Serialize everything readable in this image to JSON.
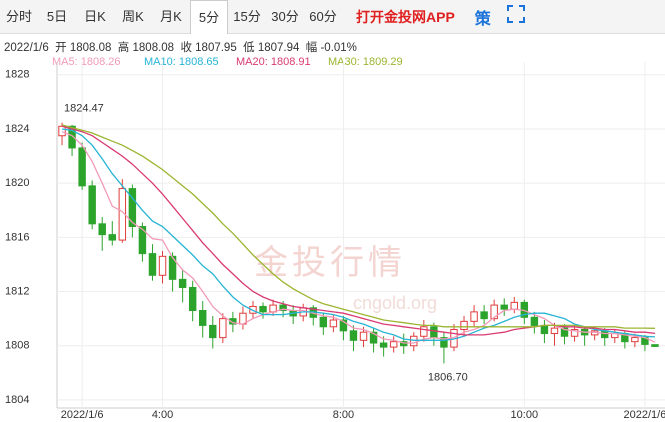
{
  "tabs": {
    "items": [
      "分时",
      "5日",
      "日K",
      "周K",
      "月K",
      "5分",
      "15分",
      "30分",
      "60分"
    ],
    "active": 5,
    "app_link": "打开金投网APP",
    "strategy": "策"
  },
  "info": "2022/1/6  开 1808.08  高 1808.08  收 1807.95  低 1807.94  幅 -0.01%",
  "watermark": {
    "title": "金投行情",
    "site": "cngold.org"
  },
  "chart_data": {
    "type": "candlestick",
    "categories": [
      null,
      null,
      "2022/1/6",
      null,
      null,
      null,
      null,
      null,
      null,
      null,
      "4:00",
      null,
      null,
      null,
      null,
      null,
      null,
      null,
      null,
      null,
      null,
      null,
      null,
      null,
      null,
      null,
      null,
      null,
      "8:00",
      null,
      null,
      null,
      null,
      null,
      null,
      null,
      null,
      null,
      null,
      null,
      null,
      null,
      null,
      null,
      null,
      null,
      "10:00",
      null,
      null,
      null,
      null,
      null,
      null,
      null,
      null,
      null,
      null,
      null,
      "2022/1/6",
      null
    ],
    "open": [
      1823.5,
      1824.2,
      1822.6,
      1819.8,
      1817.0,
      1816.2,
      1815.8,
      1819.6,
      1816.8,
      1814.8,
      1813.2,
      1814.6,
      1812.9,
      1812.3,
      1810.6,
      1809.5,
      1808.6,
      1810.0,
      1809.6,
      1810.4,
      1810.9,
      1810.5,
      1811.0,
      1810.6,
      1810.2,
      1810.8,
      1810.1,
      1809.4,
      1809.9,
      1809.1,
      1808.4,
      1809.0,
      1808.2,
      1807.9,
      1808.3,
      1808.0,
      1808.7,
      1809.4,
      1808.6,
      1807.9,
      1809.2,
      1809.8,
      1810.5,
      1810.0,
      1811.0,
      1810.7,
      1811.2,
      1810.1,
      1809.5,
      1808.9,
      1809.3,
      1808.7,
      1809.2,
      1808.8,
      1809.1,
      1808.6,
      1808.9,
      1808.3,
      1808.6,
      1808.08
    ],
    "high": [
      1824.47,
      1824.3,
      1823.0,
      1820.2,
      1817.5,
      1817.2,
      1820.3,
      1819.9,
      1817.1,
      1815.5,
      1815.0,
      1814.9,
      1813.6,
      1812.8,
      1811.3,
      1810.2,
      1810.4,
      1810.5,
      1810.9,
      1811.3,
      1811.2,
      1811.4,
      1811.3,
      1811.0,
      1811.1,
      1811.0,
      1810.4,
      1810.3,
      1810.2,
      1809.5,
      1809.4,
      1809.3,
      1808.7,
      1808.7,
      1808.9,
      1809.0,
      1809.9,
      1809.7,
      1809.0,
      1809.6,
      1810.2,
      1811.0,
      1811.0,
      1811.4,
      1811.5,
      1811.6,
      1811.4,
      1810.5,
      1809.9,
      1809.7,
      1809.6,
      1809.5,
      1809.4,
      1809.4,
      1809.3,
      1809.2,
      1809.1,
      1808.9,
      1808.8,
      1808.08
    ],
    "low": [
      1822.8,
      1822.0,
      1819.5,
      1816.6,
      1815.0,
      1815.4,
      1815.6,
      1816.0,
      1814.2,
      1812.8,
      1812.6,
      1812.0,
      1811.2,
      1809.8,
      1808.6,
      1807.8,
      1808.2,
      1809.0,
      1809.2,
      1810.0,
      1810.0,
      1810.2,
      1810.1,
      1809.6,
      1809.8,
      1809.5,
      1808.8,
      1809.0,
      1808.4,
      1807.6,
      1807.9,
      1807.5,
      1807.2,
      1807.5,
      1807.4,
      1807.6,
      1808.3,
      1808.0,
      1806.7,
      1807.6,
      1808.7,
      1809.4,
      1809.6,
      1809.8,
      1810.2,
      1810.4,
      1809.6,
      1808.9,
      1808.2,
      1808.0,
      1808.1,
      1808.3,
      1808.0,
      1808.4,
      1808.0,
      1808.2,
      1807.8,
      1807.9,
      1807.6,
      1807.94
    ],
    "close": [
      1824.2,
      1822.6,
      1819.8,
      1817.0,
      1816.2,
      1815.8,
      1819.6,
      1816.8,
      1814.8,
      1813.2,
      1814.6,
      1812.9,
      1812.3,
      1810.6,
      1809.5,
      1808.6,
      1810.0,
      1809.6,
      1810.4,
      1810.9,
      1810.5,
      1811.0,
      1810.6,
      1810.2,
      1810.8,
      1810.1,
      1809.4,
      1809.9,
      1809.1,
      1808.4,
      1809.0,
      1808.2,
      1807.9,
      1808.3,
      1808.0,
      1808.7,
      1809.4,
      1808.6,
      1807.9,
      1809.2,
      1809.8,
      1810.5,
      1810.0,
      1811.0,
      1810.7,
      1811.2,
      1810.1,
      1809.5,
      1808.9,
      1809.3,
      1808.7,
      1809.2,
      1808.8,
      1809.1,
      1808.6,
      1808.9,
      1808.3,
      1808.6,
      1808.1,
      1807.95
    ],
    "up_color": "#e03c3c",
    "down_color": "#2ca42c",
    "annotations": [
      "1824.47",
      "1806.70"
    ],
    "series": [
      {
        "name": "MA5: 1808.26",
        "color": "#f29ab8",
        "values": [
          1823.8,
          1823.5,
          1822.8,
          1821.6,
          1820.0,
          1818.3,
          1817.9,
          1817.1,
          1816.6,
          1815.9,
          1815.8,
          1814.5,
          1813.6,
          1813.0,
          1812.0,
          1810.9,
          1810.2,
          1809.7,
          1809.6,
          1810.0,
          1810.3,
          1810.5,
          1810.7,
          1810.6,
          1810.6,
          1810.4,
          1810.2,
          1810.1,
          1809.8,
          1809.3,
          1809.2,
          1808.9,
          1808.5,
          1808.4,
          1808.2,
          1808.2,
          1808.5,
          1808.6,
          1808.5,
          1808.6,
          1809.0,
          1809.2,
          1809.5,
          1810.1,
          1810.6,
          1810.7,
          1810.6,
          1810.3,
          1810.0,
          1809.5,
          1809.2,
          1809.1,
          1809.0,
          1809.0,
          1808.9,
          1808.9,
          1808.8,
          1808.7,
          1808.6,
          1808.26
        ]
      },
      {
        "name": "MA10: 1808.65",
        "color": "#27b4d4",
        "values": [
          1824.0,
          1823.9,
          1823.5,
          1822.8,
          1821.8,
          1820.7,
          1819.8,
          1818.9,
          1818.0,
          1817.2,
          1816.8,
          1816.1,
          1815.4,
          1814.7,
          1813.9,
          1813.3,
          1812.4,
          1811.6,
          1811.0,
          1810.6,
          1810.3,
          1810.3,
          1810.3,
          1810.4,
          1810.5,
          1810.5,
          1810.4,
          1810.3,
          1810.1,
          1809.8,
          1809.6,
          1809.3,
          1809.0,
          1808.8,
          1808.5,
          1808.4,
          1808.4,
          1808.4,
          1808.4,
          1808.5,
          1808.7,
          1809.0,
          1809.3,
          1809.5,
          1809.8,
          1810.1,
          1810.3,
          1810.4,
          1810.4,
          1810.2,
          1810.0,
          1809.6,
          1809.4,
          1809.2,
          1809.1,
          1809.0,
          1808.9,
          1808.8,
          1808.7,
          1808.65
        ]
      },
      {
        "name": "MA20: 1808.91",
        "color": "#d93a72",
        "values": [
          1824.2,
          1824.0,
          1823.8,
          1823.5,
          1823.0,
          1822.5,
          1822.0,
          1821.4,
          1820.7,
          1820.0,
          1819.2,
          1818.3,
          1817.4,
          1816.5,
          1815.6,
          1814.8,
          1814.0,
          1813.3,
          1812.6,
          1812.0,
          1811.6,
          1811.3,
          1811.1,
          1810.9,
          1810.8,
          1810.7,
          1810.6,
          1810.5,
          1810.4,
          1810.2,
          1810.0,
          1809.8,
          1809.6,
          1809.5,
          1809.4,
          1809.3,
          1809.2,
          1809.1,
          1809.0,
          1808.9,
          1808.8,
          1808.8,
          1808.8,
          1808.9,
          1809.0,
          1809.2,
          1809.3,
          1809.4,
          1809.5,
          1809.5,
          1809.4,
          1809.4,
          1809.3,
          1809.3,
          1809.2,
          1809.2,
          1809.1,
          1809.0,
          1809.0,
          1808.91
        ]
      },
      {
        "name": "MA30: 1809.29",
        "color": "#9bb530",
        "values": [
          1824.3,
          1824.1,
          1823.9,
          1823.7,
          1823.4,
          1823.1,
          1822.8,
          1822.4,
          1822.0,
          1821.5,
          1821.0,
          1820.4,
          1819.8,
          1819.2,
          1818.5,
          1817.8,
          1817.0,
          1816.3,
          1815.5,
          1814.7,
          1814.0,
          1813.3,
          1812.7,
          1812.2,
          1811.8,
          1811.4,
          1811.1,
          1810.9,
          1810.7,
          1810.5,
          1810.3,
          1810.1,
          1809.9,
          1809.8,
          1809.7,
          1809.6,
          1809.5,
          1809.5,
          1809.4,
          1809.4,
          1809.4,
          1809.4,
          1809.4,
          1809.4,
          1809.4,
          1809.4,
          1809.4,
          1809.4,
          1809.5,
          1809.5,
          1809.5,
          1809.5,
          1809.4,
          1809.4,
          1809.4,
          1809.4,
          1809.3,
          1809.3,
          1809.3,
          1809.29
        ]
      }
    ],
    "ylim": [
      1803.7,
      1828.5
    ],
    "yticks": [
      1804,
      1808,
      1812,
      1816,
      1820,
      1824,
      1828
    ],
    "grid": true
  }
}
